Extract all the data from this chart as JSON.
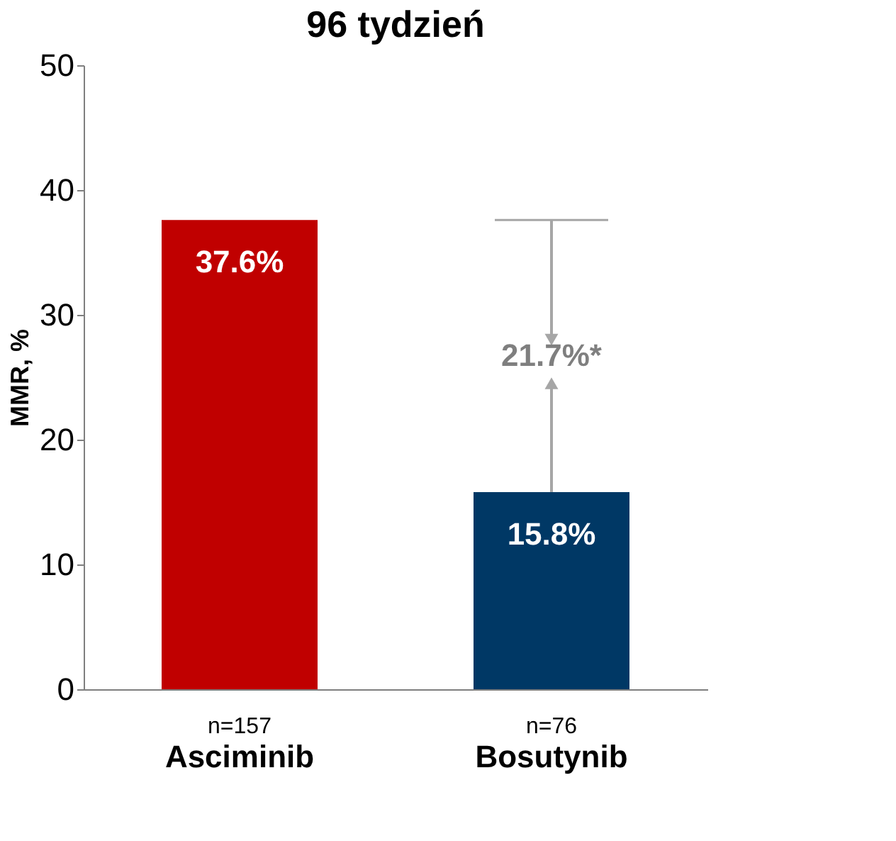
{
  "chart_data": {
    "type": "bar",
    "title": "96 tydzień",
    "ylabel": "MMR, %",
    "categories": [
      "Asciminib",
      "Bosutynib"
    ],
    "values": [
      37.6,
      15.8
    ],
    "colors": [
      "#c00000",
      "#003865"
    ],
    "value_labels": [
      "37.6%",
      "15.8%"
    ],
    "ylim": [
      0,
      50
    ],
    "yticks": [
      0,
      10,
      20,
      30,
      40,
      50
    ],
    "grid": false,
    "ref_lines": [
      {
        "axis": "y",
        "value": 37.6,
        "color": "#a6a6a6"
      }
    ],
    "annotations": [
      "n=157",
      "n=76",
      "21.7%*"
    ]
  }
}
